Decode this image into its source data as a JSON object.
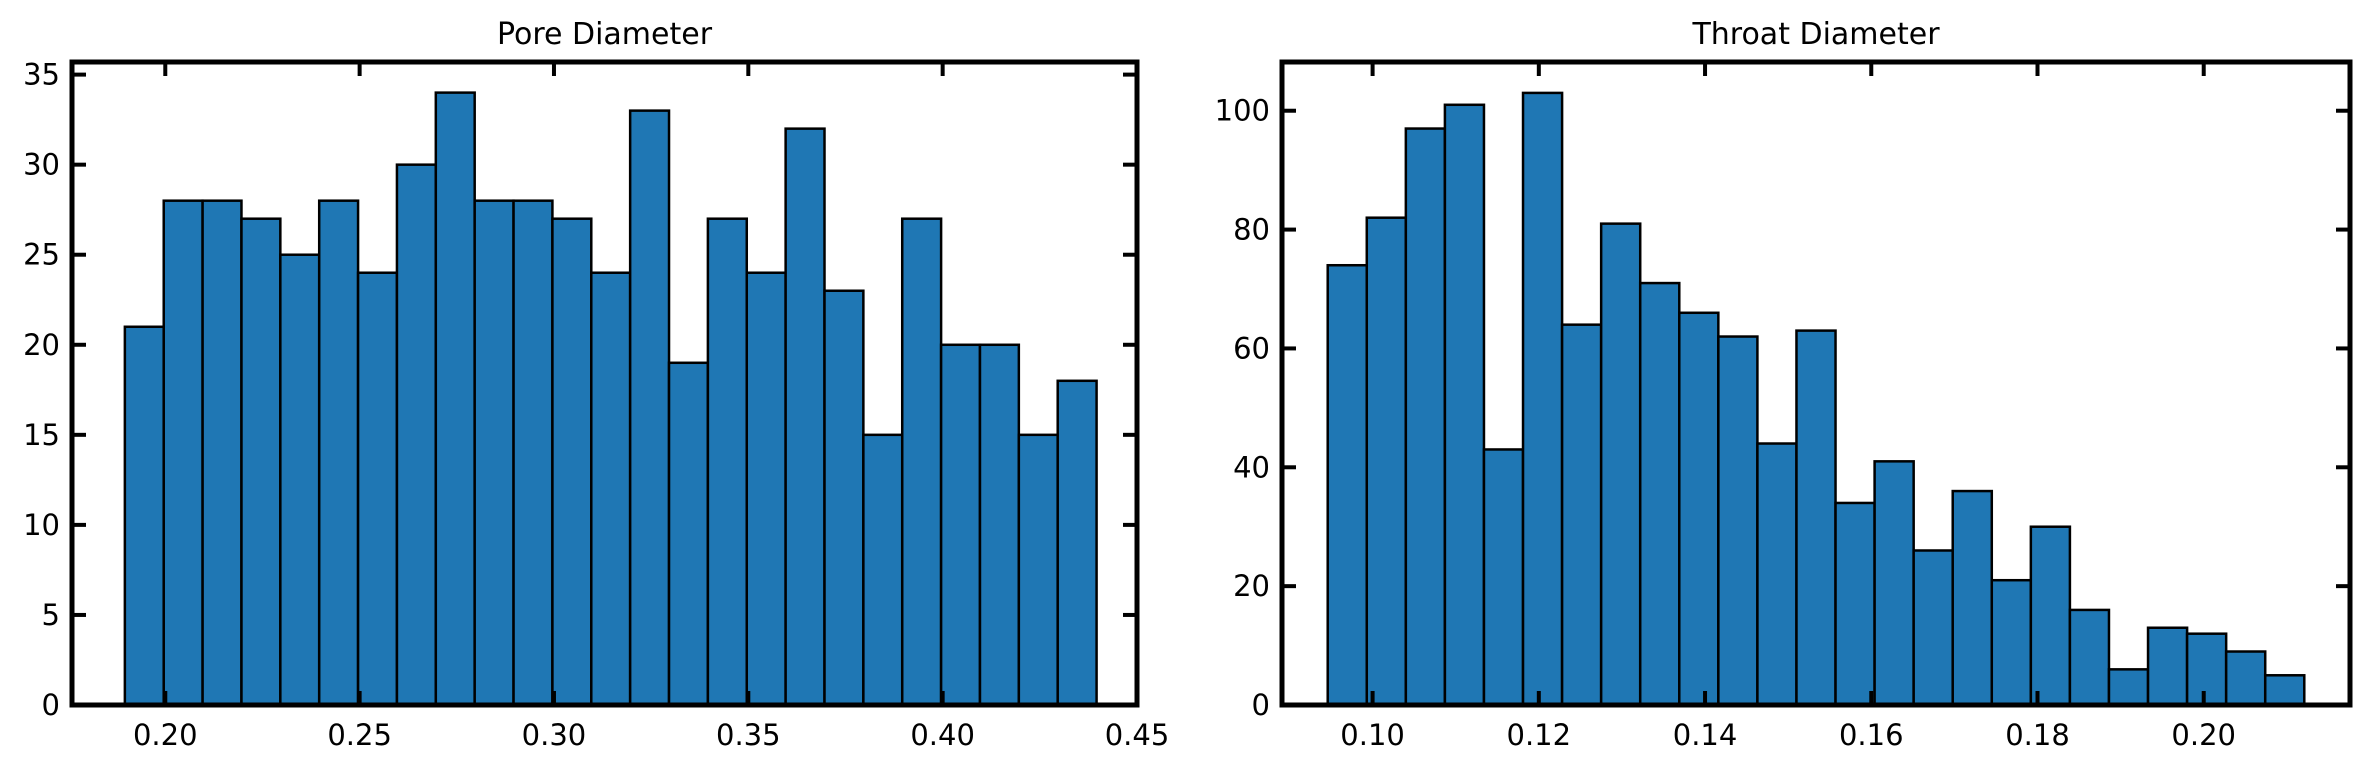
{
  "chart_data": [
    {
      "type": "bar",
      "title": "Pore Diameter",
      "xlabel": "",
      "ylabel": "",
      "bin_edges": [
        0.1896,
        0.1996,
        0.2096,
        0.2196,
        0.2296,
        0.2396,
        0.2496,
        0.2596,
        0.2696,
        0.2796,
        0.2896,
        0.2996,
        0.3096,
        0.3196,
        0.3296,
        0.3396,
        0.3496,
        0.3596,
        0.3696,
        0.3796,
        0.3896,
        0.3996,
        0.4096,
        0.4196,
        0.4296,
        0.4396
      ],
      "values": [
        21,
        28,
        28,
        27,
        25,
        28,
        24,
        30,
        34,
        28,
        28,
        27,
        24,
        33,
        19,
        27,
        24,
        32,
        23,
        15,
        27,
        20,
        20,
        15,
        18
      ],
      "xlim": [
        0.176,
        0.45
      ],
      "ylim": [
        0,
        35.7
      ],
      "xticks": [
        "0.20",
        "0.25",
        "0.30",
        "0.35",
        "0.40",
        "0.45"
      ],
      "yticks": [
        "0",
        "5",
        "10",
        "15",
        "20",
        "25",
        "30",
        "35"
      ],
      "bar_color": "#1f77b4",
      "edge_color": "#000000",
      "grid": false
    },
    {
      "type": "bar",
      "title": "Throat Diameter",
      "xlabel": "",
      "ylabel": "",
      "bin_edges": [
        0.0946,
        0.0993,
        0.104,
        0.1087,
        0.1134,
        0.1181,
        0.1228,
        0.1275,
        0.1322,
        0.1369,
        0.1416,
        0.1463,
        0.151,
        0.1557,
        0.1604,
        0.1651,
        0.1698,
        0.1745,
        0.1792,
        0.1839,
        0.1886,
        0.1933,
        0.198,
        0.2027,
        0.2074,
        0.2121
      ],
      "values": [
        74,
        82,
        97,
        101,
        43,
        103,
        64,
        81,
        71,
        66,
        62,
        44,
        63,
        34,
        41,
        26,
        36,
        21,
        30,
        16,
        6,
        13,
        12,
        9,
        5
      ],
      "xlim": [
        0.0891,
        0.2176
      ],
      "ylim": [
        0,
        108.2
      ],
      "xticks": [
        "0.10",
        "0.12",
        "0.14",
        "0.16",
        "0.18",
        "0.20"
      ],
      "yticks": [
        "0",
        "20",
        "40",
        "60",
        "80",
        "100"
      ],
      "bar_color": "#1f77b4",
      "edge_color": "#000000",
      "grid": false
    }
  ]
}
